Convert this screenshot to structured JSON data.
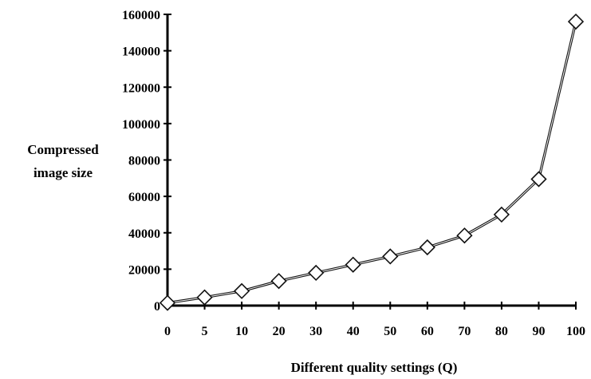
{
  "chart_data": {
    "type": "line",
    "title": "",
    "xlabel": "Different quality settings (Q)",
    "ylabel_lines": [
      "Compressed",
      "image size"
    ],
    "x_categories": [
      "0",
      "5",
      "10",
      "20",
      "30",
      "40",
      "50",
      "60",
      "70",
      "80",
      "90",
      "100"
    ],
    "ylim": [
      0,
      160000
    ],
    "yticks": [
      "0",
      "20000",
      "40000",
      "60000",
      "80000",
      "100000",
      "120000",
      "140000",
      "160000"
    ],
    "grid": false,
    "legend": "none",
    "series": [
      {
        "values": [
          1500,
          4500,
          8000,
          13500,
          18000,
          22500,
          27000,
          32000,
          38500,
          50000,
          69500,
          156000
        ]
      }
    ],
    "colors": {
      "line": "#111111",
      "marker_fill": "#ffffff",
      "axis": "#000000"
    }
  }
}
